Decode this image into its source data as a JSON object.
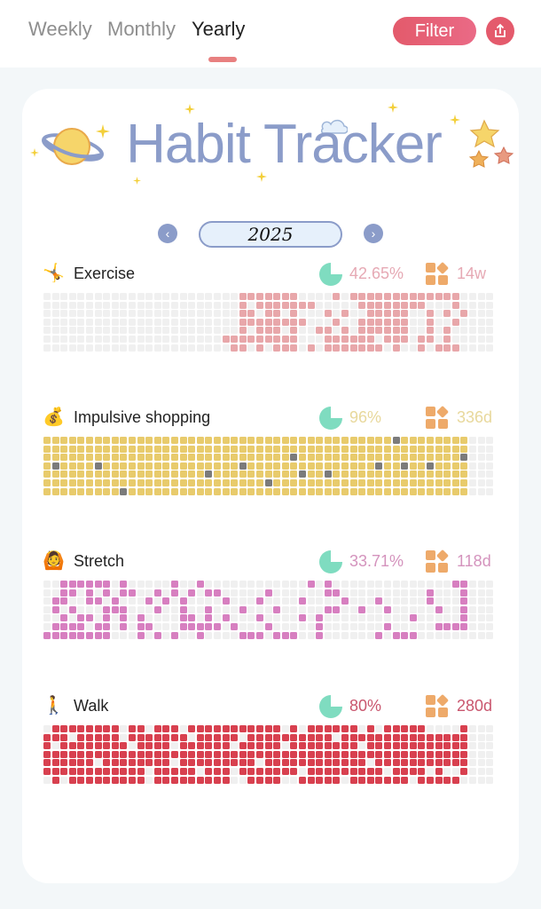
{
  "tabs": [
    {
      "label": "Weekly"
    },
    {
      "label": "Monthly"
    },
    {
      "label": "Yearly",
      "active": true
    }
  ],
  "filter_label": "Filter",
  "share_icon": "share-icon",
  "title": "Habit Tracker",
  "year": "2025",
  "empty_color": "#f0f0f0",
  "habits": [
    {
      "name": "Exercise",
      "emoji": "🤸",
      "completion": "42.65%",
      "streak": "14w",
      "color": "#e8a7aa",
      "text_color": "#e6a9b4",
      "rows": [
        [
          [
            23,
            29
          ],
          [
            34,
            34
          ],
          [
            36,
            48
          ]
        ],
        [
          [
            23,
            23
          ],
          [
            25,
            31
          ],
          [
            37,
            44
          ],
          [
            48,
            48
          ]
        ],
        [
          [
            23,
            24
          ],
          [
            26,
            27
          ],
          [
            29,
            29
          ],
          [
            33,
            33
          ],
          [
            35,
            35
          ],
          [
            38,
            42
          ],
          [
            45,
            45
          ],
          [
            47,
            47
          ],
          [
            49,
            49
          ]
        ],
        [
          [
            23,
            30
          ],
          [
            34,
            34
          ],
          [
            37,
            42
          ],
          [
            45,
            45
          ],
          [
            48,
            48
          ]
        ],
        [
          [
            23,
            23
          ],
          [
            25,
            27
          ],
          [
            29,
            29
          ],
          [
            32,
            33
          ],
          [
            35,
            35
          ],
          [
            37,
            42
          ],
          [
            45,
            45
          ],
          [
            47,
            47
          ]
        ],
        [
          [
            21,
            29
          ],
          [
            33,
            38
          ],
          [
            40,
            42
          ],
          [
            44,
            45
          ],
          [
            47,
            47
          ]
        ],
        [
          [
            22,
            23
          ],
          [
            25,
            25
          ],
          [
            27,
            29
          ],
          [
            31,
            31
          ],
          [
            33,
            39
          ],
          [
            41,
            41
          ],
          [
            44,
            44
          ],
          [
            46,
            48
          ]
        ]
      ]
    },
    {
      "name": "Impulsive shopping",
      "emoji": "💰",
      "completion": "96%",
      "streak": "336d",
      "color": "#e8cb6c",
      "text_color": "#e8d89c",
      "missed_color": "#7b7b7b",
      "rows": [
        [
          [
            0,
            49
          ]
        ],
        [
          [
            0,
            49
          ]
        ],
        [
          [
            0,
            49
          ]
        ],
        [
          [
            0,
            49
          ]
        ],
        [
          [
            0,
            49
          ]
        ],
        [
          [
            0,
            49
          ]
        ],
        [
          [
            0,
            49
          ]
        ]
      ],
      "missed": [
        [
          0,
          41
        ],
        [
          2,
          29
        ],
        [
          2,
          49
        ],
        [
          3,
          1
        ],
        [
          3,
          6
        ],
        [
          3,
          23
        ],
        [
          3,
          39
        ],
        [
          3,
          42
        ],
        [
          3,
          45
        ],
        [
          4,
          19
        ],
        [
          4,
          30
        ],
        [
          4,
          33
        ],
        [
          5,
          26
        ],
        [
          6,
          9
        ]
      ]
    },
    {
      "name": "Stretch",
      "emoji": "🙆",
      "completion": "33.71%",
      "streak": "118d",
      "color": "#d77fc0",
      "text_color": "#d493bd",
      "rows": [
        [
          [
            2,
            7
          ],
          [
            9,
            9
          ],
          [
            15,
            15
          ],
          [
            18,
            18
          ],
          [
            31,
            31
          ],
          [
            33,
            33
          ],
          [
            48,
            49
          ]
        ],
        [
          [
            2,
            3
          ],
          [
            5,
            5
          ],
          [
            7,
            7
          ],
          [
            9,
            10
          ],
          [
            13,
            13
          ],
          [
            15,
            15
          ],
          [
            17,
            17
          ],
          [
            19,
            20
          ],
          [
            26,
            26
          ],
          [
            33,
            34
          ],
          [
            45,
            45
          ],
          [
            49,
            49
          ]
        ],
        [
          [
            1,
            2
          ],
          [
            5,
            6
          ],
          [
            8,
            8
          ],
          [
            12,
            12
          ],
          [
            14,
            14
          ],
          [
            16,
            16
          ],
          [
            21,
            21
          ],
          [
            25,
            25
          ],
          [
            30,
            30
          ],
          [
            35,
            35
          ],
          [
            39,
            39
          ],
          [
            45,
            45
          ],
          [
            49,
            49
          ]
        ],
        [
          [
            1,
            1
          ],
          [
            3,
            3
          ],
          [
            7,
            9
          ],
          [
            13,
            13
          ],
          [
            16,
            16
          ],
          [
            19,
            19
          ],
          [
            23,
            23
          ],
          [
            27,
            27
          ],
          [
            33,
            34
          ],
          [
            37,
            37
          ],
          [
            40,
            40
          ],
          [
            46,
            46
          ],
          [
            49,
            49
          ]
        ],
        [
          [
            2,
            2
          ],
          [
            4,
            5
          ],
          [
            7,
            7
          ],
          [
            9,
            9
          ],
          [
            11,
            11
          ],
          [
            16,
            17
          ],
          [
            19,
            19
          ],
          [
            21,
            21
          ],
          [
            25,
            25
          ],
          [
            30,
            30
          ],
          [
            32,
            32
          ],
          [
            43,
            43
          ],
          [
            49,
            49
          ]
        ],
        [
          [
            1,
            4
          ],
          [
            6,
            7
          ],
          [
            9,
            9
          ],
          [
            11,
            12
          ],
          [
            16,
            20
          ],
          [
            22,
            22
          ],
          [
            26,
            26
          ],
          [
            32,
            32
          ],
          [
            40,
            40
          ],
          [
            46,
            49
          ]
        ],
        [
          [
            0,
            7
          ],
          [
            11,
            11
          ],
          [
            13,
            13
          ],
          [
            15,
            15
          ],
          [
            18,
            18
          ],
          [
            23,
            25
          ],
          [
            27,
            29
          ],
          [
            32,
            32
          ],
          [
            39,
            39
          ],
          [
            41,
            43
          ]
        ]
      ]
    },
    {
      "name": "Walk",
      "emoji": "🚶",
      "completion": "80%",
      "streak": "280d",
      "color": "#d8404f",
      "text_color": "#c9566e",
      "rows": [
        [
          [
            1,
            8
          ],
          [
            10,
            11
          ],
          [
            13,
            15
          ],
          [
            17,
            27
          ],
          [
            29,
            29
          ],
          [
            31,
            36
          ],
          [
            38,
            38
          ],
          [
            40,
            44
          ],
          [
            49,
            49
          ]
        ],
        [
          [
            0,
            2
          ],
          [
            4,
            8
          ],
          [
            10,
            16
          ],
          [
            18,
            22
          ],
          [
            24,
            33
          ],
          [
            35,
            49
          ]
        ],
        [
          [
            0,
            0
          ],
          [
            2,
            9
          ],
          [
            11,
            14
          ],
          [
            16,
            21
          ],
          [
            23,
            27
          ],
          [
            29,
            36
          ],
          [
            38,
            49
          ]
        ],
        [
          [
            0,
            49
          ]
        ],
        [
          [
            0,
            5
          ],
          [
            7,
            14
          ],
          [
            16,
            24
          ],
          [
            26,
            37
          ],
          [
            39,
            49
          ]
        ],
        [
          [
            0,
            11
          ],
          [
            13,
            17
          ],
          [
            19,
            21
          ],
          [
            23,
            29
          ],
          [
            31,
            39
          ],
          [
            41,
            44
          ],
          [
            46,
            46
          ],
          [
            49,
            49
          ]
        ],
        [
          [
            1,
            1
          ],
          [
            3,
            11
          ],
          [
            13,
            21
          ],
          [
            24,
            27
          ],
          [
            30,
            34
          ],
          [
            36,
            42
          ],
          [
            44,
            48
          ]
        ]
      ]
    }
  ]
}
